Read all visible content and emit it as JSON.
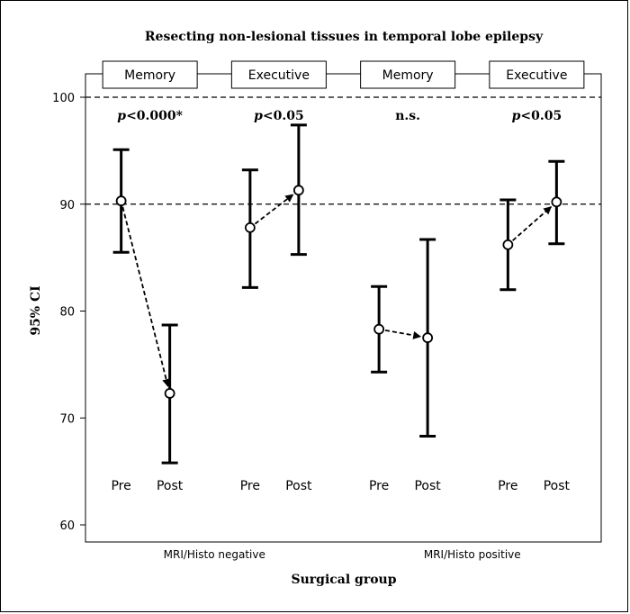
{
  "chart_data": {
    "type": "errorbar",
    "title": "Resecting non-lesional tissues in temporal lobe epilepsy",
    "xlabel": "Surgical group",
    "ylabel": "95% CI",
    "ylim": [
      60,
      100
    ],
    "yticks": [
      60,
      70,
      80,
      90,
      100
    ],
    "reference_lines": [
      90,
      100
    ],
    "groups": [
      "MRI/Histo negative",
      "MRI/Histo positive"
    ],
    "panels": [
      {
        "label": "Memory",
        "group": "MRI/Histo negative",
        "p_prefix": "p",
        "p_rest": "<0.000*",
        "points": [
          {
            "condition": "Pre",
            "mean": 90.3,
            "lower": 85.5,
            "upper": 95.1
          },
          {
            "condition": "Post",
            "mean": 72.3,
            "lower": 65.8,
            "upper": 78.7
          }
        ]
      },
      {
        "label": "Executive",
        "group": "MRI/Histo negative",
        "p_prefix": "p",
        "p_rest": "<0.05",
        "points": [
          {
            "condition": "Pre",
            "mean": 87.8,
            "lower": 82.2,
            "upper": 93.2
          },
          {
            "condition": "Post",
            "mean": 91.3,
            "lower": 85.3,
            "upper": 97.4
          }
        ]
      },
      {
        "label": "Memory",
        "group": "MRI/Histo positive",
        "p_prefix": "",
        "p_rest": "n.s.",
        "points": [
          {
            "condition": "Pre",
            "mean": 78.3,
            "lower": 74.3,
            "upper": 82.3
          },
          {
            "condition": "Post",
            "mean": 77.5,
            "lower": 68.3,
            "upper": 86.7
          }
        ]
      },
      {
        "label": "Executive",
        "group": "MRI/Histo positive",
        "p_prefix": "p",
        "p_rest": "<0.05",
        "points": [
          {
            "condition": "Pre",
            "mean": 86.2,
            "lower": 82.0,
            "upper": 90.4
          },
          {
            "condition": "Post",
            "mean": 90.2,
            "lower": 86.3,
            "upper": 94.0
          }
        ]
      }
    ]
  }
}
